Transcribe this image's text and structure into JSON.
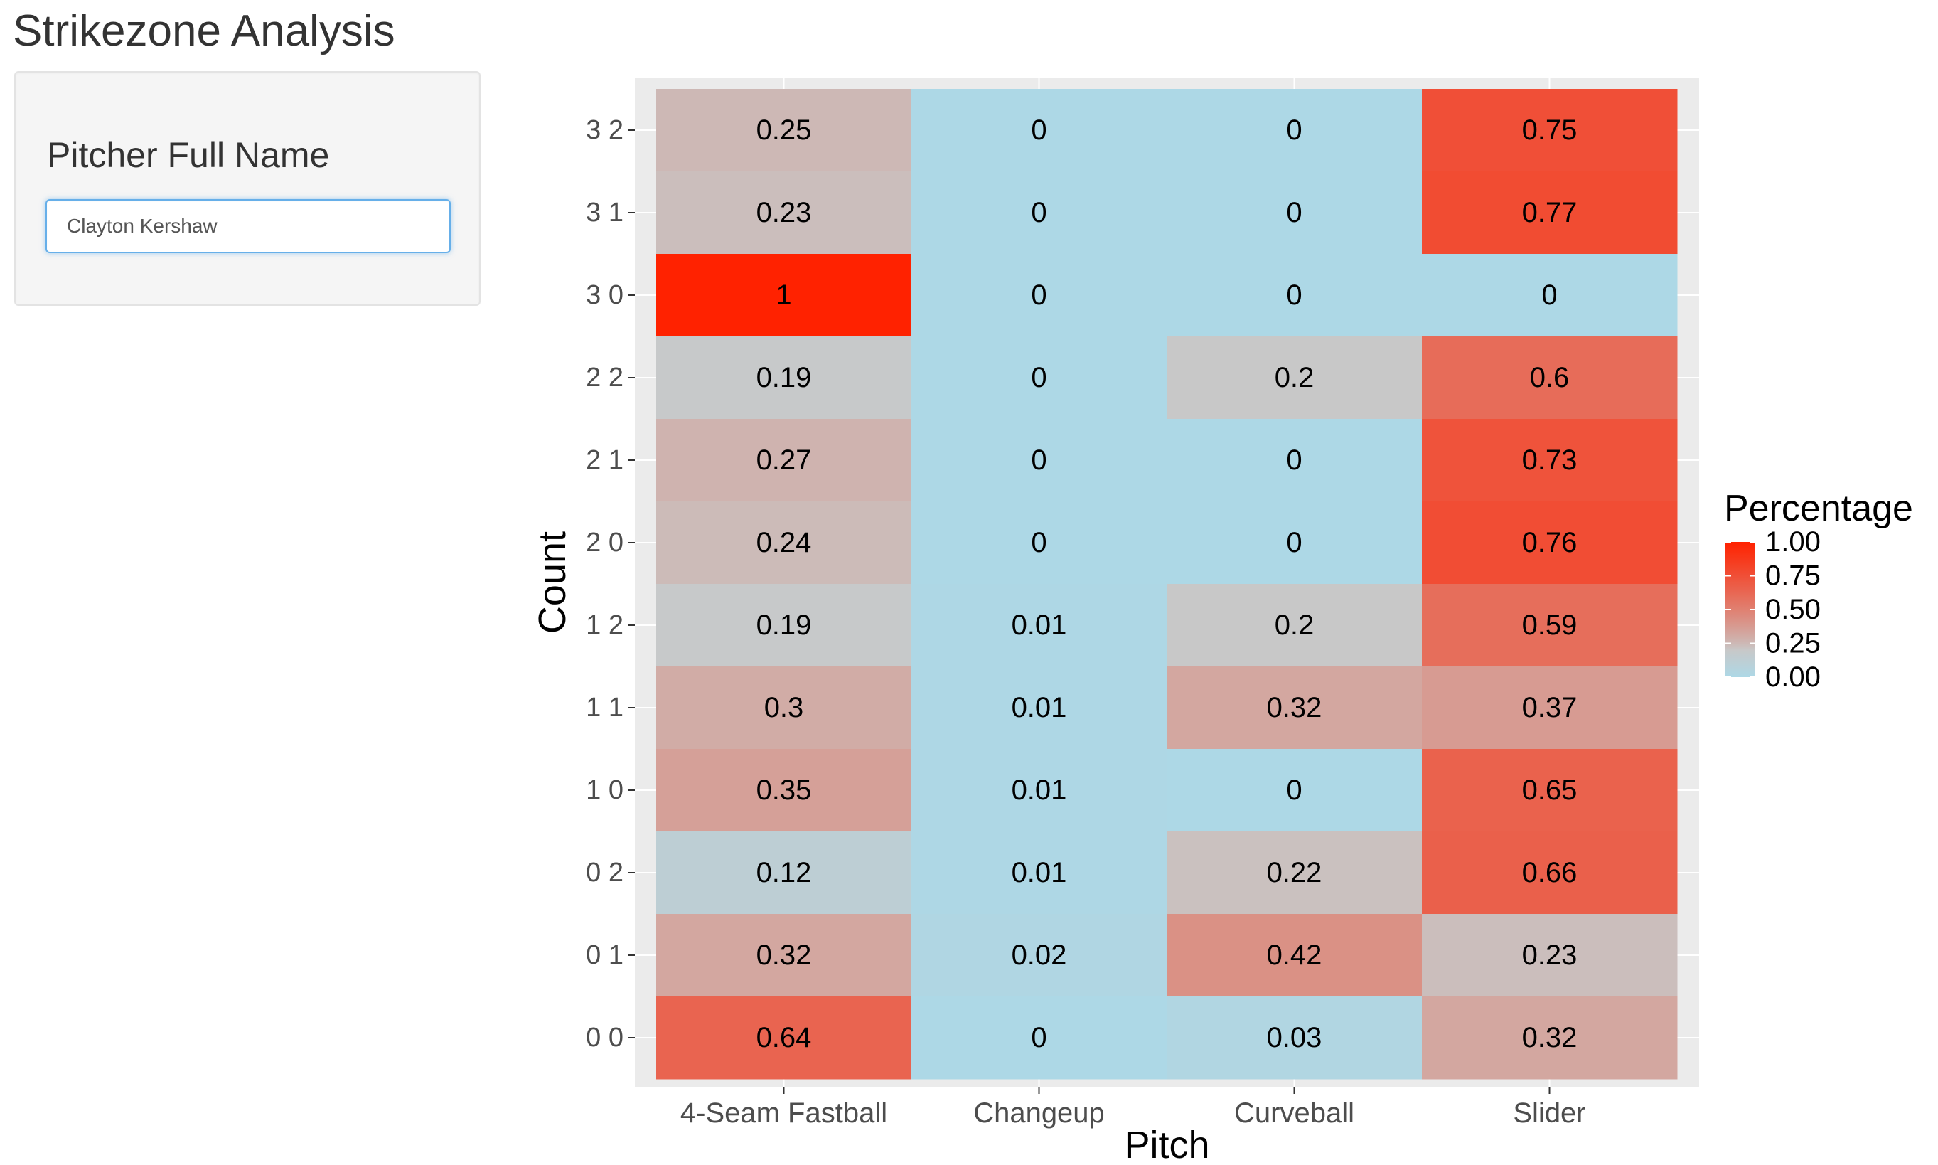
{
  "app": {
    "title": "Strikezone Analysis"
  },
  "sidebar": {
    "field_label": "Pitcher Full Name",
    "input_value": "Clayton Kershaw"
  },
  "colors": {
    "low": "#add8e6",
    "high": "#ff2200",
    "panel_background": "#ebebeb",
    "sidebar_background": "#f5f5f5",
    "input_focus_border": "#66afe9"
  },
  "chart_data": {
    "type": "heatmap",
    "xlabel": "Pitch",
    "ylabel": "Count",
    "x_categories": [
      "4-Seam Fastball",
      "Changeup",
      "Curveball",
      "Slider"
    ],
    "y_categories": [
      "3 2",
      "3 1",
      "3 0",
      "2 2",
      "2 1",
      "2 0",
      "1 2",
      "1 1",
      "1 0",
      "0 2",
      "0 1",
      "0 0"
    ],
    "values": [
      [
        0.25,
        0,
        0,
        0.75
      ],
      [
        0.23,
        0,
        0,
        0.77
      ],
      [
        1,
        0,
        0,
        0
      ],
      [
        0.19,
        0,
        0.2,
        0.6
      ],
      [
        0.27,
        0,
        0,
        0.73
      ],
      [
        0.24,
        0,
        0,
        0.76
      ],
      [
        0.19,
        0.01,
        0.2,
        0.59
      ],
      [
        0.3,
        0.01,
        0.32,
        0.37
      ],
      [
        0.35,
        0.01,
        0,
        0.65
      ],
      [
        0.12,
        0.01,
        0.22,
        0.66
      ],
      [
        0.32,
        0.02,
        0.42,
        0.23
      ],
      [
        0.64,
        0,
        0.03,
        0.32
      ]
    ],
    "legend": {
      "title": "Percentage",
      "breaks": [
        "1.00",
        "0.75",
        "0.50",
        "0.25",
        "0.00"
      ],
      "range": [
        0,
        1
      ],
      "placement": "right"
    },
    "grid": true
  }
}
